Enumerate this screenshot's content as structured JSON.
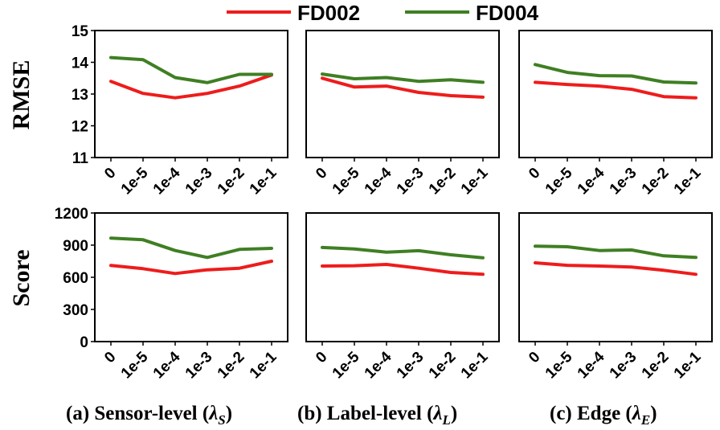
{
  "legend": [
    {
      "name": "FD002",
      "color": "#ee1c1c"
    },
    {
      "name": "FD004",
      "color": "#3f7f23"
    }
  ],
  "captions": [
    {
      "pre": "(a) Sensor-level (",
      "sym": "λ",
      "sub": "S",
      "post": ")"
    },
    {
      "pre": "(b) Label-level (",
      "sym": "λ",
      "sub": "L",
      "post": ")"
    },
    {
      "pre": "(c) Edge (",
      "sym": "λ",
      "sub": "E",
      "post": ")"
    }
  ],
  "chart_data": [
    {
      "type": "line",
      "panel": "a",
      "metric": "RMSE",
      "ylabel": "RMSE",
      "xlabel": "",
      "categories": [
        "0",
        "1e-5",
        "1e-4",
        "1e-3",
        "1e-2",
        "1e-1"
      ],
      "ylim": [
        11,
        15
      ],
      "yticks": [
        "11",
        "12",
        "13",
        "14",
        "15"
      ],
      "grid": false,
      "series": [
        {
          "name": "FD002",
          "values": [
            13.4,
            13.02,
            12.88,
            13.02,
            13.25,
            13.6
          ]
        },
        {
          "name": "FD004",
          "values": [
            14.15,
            14.08,
            13.52,
            13.36,
            13.62,
            13.62
          ]
        }
      ]
    },
    {
      "type": "line",
      "panel": "b",
      "metric": "RMSE",
      "ylabel": "",
      "xlabel": "",
      "categories": [
        "0",
        "1e-5",
        "1e-4",
        "1e-3",
        "1e-2",
        "1e-1"
      ],
      "ylim": [
        11,
        15
      ],
      "yticks": [],
      "grid": false,
      "series": [
        {
          "name": "FD002",
          "values": [
            13.5,
            13.22,
            13.25,
            13.05,
            12.95,
            12.9
          ]
        },
        {
          "name": "FD004",
          "values": [
            13.63,
            13.48,
            13.52,
            13.4,
            13.45,
            13.37
          ]
        }
      ]
    },
    {
      "type": "line",
      "panel": "c",
      "metric": "RMSE",
      "ylabel": "",
      "xlabel": "",
      "categories": [
        "0",
        "1e-5",
        "1e-4",
        "1e-3",
        "1e-2",
        "1e-1"
      ],
      "ylim": [
        11,
        15
      ],
      "yticks": [],
      "grid": false,
      "series": [
        {
          "name": "FD002",
          "values": [
            13.37,
            13.3,
            13.25,
            13.15,
            12.92,
            12.88
          ]
        },
        {
          "name": "FD004",
          "values": [
            13.93,
            13.68,
            13.58,
            13.57,
            13.38,
            13.35
          ]
        }
      ]
    },
    {
      "type": "line",
      "panel": "a",
      "metric": "Score",
      "ylabel": "Score",
      "xlabel": "",
      "categories": [
        "0",
        "1e-5",
        "1e-4",
        "1e-3",
        "1e-2",
        "1e-1"
      ],
      "ylim": [
        0,
        1200
      ],
      "yticks": [
        "0",
        "300",
        "600",
        "900",
        "1200"
      ],
      "grid": false,
      "series": [
        {
          "name": "FD002",
          "values": [
            710,
            680,
            635,
            670,
            685,
            750
          ]
        },
        {
          "name": "FD004",
          "values": [
            965,
            950,
            850,
            785,
            860,
            870
          ]
        }
      ]
    },
    {
      "type": "line",
      "panel": "b",
      "metric": "Score",
      "ylabel": "",
      "xlabel": "",
      "categories": [
        "0",
        "1e-5",
        "1e-4",
        "1e-3",
        "1e-2",
        "1e-1"
      ],
      "ylim": [
        0,
        1200
      ],
      "yticks": [],
      "grid": false,
      "series": [
        {
          "name": "FD002",
          "values": [
            705,
            708,
            720,
            685,
            645,
            628
          ]
        },
        {
          "name": "FD004",
          "values": [
            878,
            865,
            835,
            848,
            810,
            782
          ]
        }
      ]
    },
    {
      "type": "line",
      "panel": "c",
      "metric": "Score",
      "ylabel": "",
      "xlabel": "",
      "categories": [
        "0",
        "1e-5",
        "1e-4",
        "1e-3",
        "1e-2",
        "1e-1"
      ],
      "ylim": [
        0,
        1200
      ],
      "yticks": [],
      "grid": false,
      "series": [
        {
          "name": "FD002",
          "values": [
            735,
            712,
            705,
            695,
            665,
            628
          ]
        },
        {
          "name": "FD004",
          "values": [
            890,
            885,
            850,
            855,
            800,
            785
          ]
        }
      ]
    }
  ]
}
